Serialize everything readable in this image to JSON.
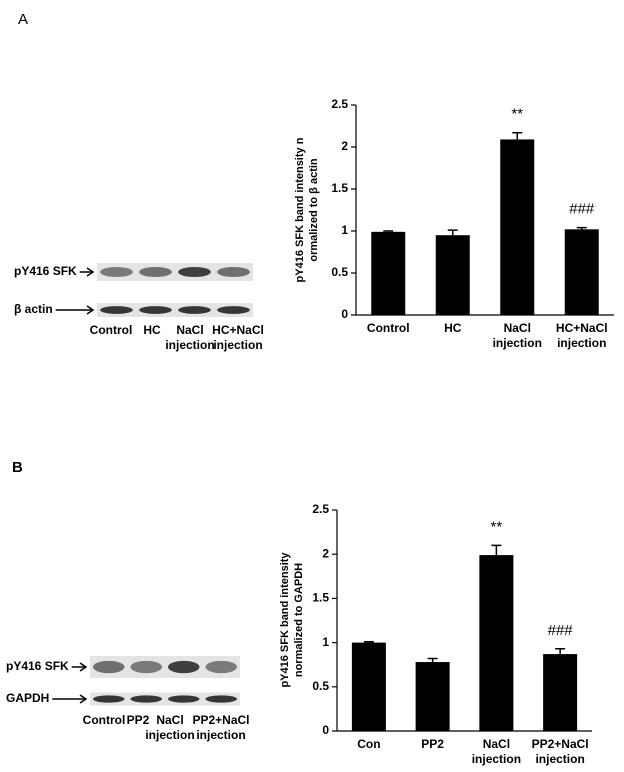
{
  "panels": [
    "A",
    "B"
  ],
  "blots": [
    {
      "rows": [
        "pY416 SFK",
        "β actin"
      ],
      "lanes": [
        [
          "Control"
        ],
        [
          "HC"
        ],
        [
          "NaCl",
          "injection"
        ],
        [
          "HC+NaCl",
          "injection"
        ]
      ]
    },
    {
      "rows": [
        "pY416 SFK",
        "GAPDH"
      ],
      "lanes": [
        [
          "Control"
        ],
        [
          "PP2"
        ],
        [
          "NaCl",
          "injection"
        ],
        [
          "PP2+NaCl",
          "injection"
        ]
      ]
    }
  ],
  "chart_data": [
    {
      "type": "bar",
      "ylabel": [
        "pY416 SFK band intensity n",
        "ormalized to β actin"
      ],
      "categories": [
        [
          "Control"
        ],
        [
          "HC"
        ],
        [
          "NaCl",
          "injection"
        ],
        [
          "HC+NaCl",
          "injection"
        ]
      ],
      "values": [
        0.99,
        0.95,
        2.09,
        1.02
      ],
      "errors": [
        0.01,
        0.06,
        0.08,
        0.02
      ],
      "annotations": [
        null,
        null,
        "**",
        "###"
      ],
      "color": "#000000",
      "ylim": [
        0,
        2.5
      ],
      "yticks": [
        0,
        0.5,
        1,
        1.5,
        2,
        2.5
      ],
      "grid": false
    },
    {
      "type": "bar",
      "ylabel": [
        "pY416 SFK band intensity",
        "normalized to GAPDH"
      ],
      "categories": [
        [
          "Con"
        ],
        [
          "PP2"
        ],
        [
          "NaCl",
          "injection"
        ],
        [
          "PP2+NaCl",
          "injection"
        ]
      ],
      "values": [
        1.0,
        0.78,
        1.99,
        0.87
      ],
      "errors": [
        0.01,
        0.04,
        0.11,
        0.06
      ],
      "annotations": [
        null,
        null,
        "**",
        "###"
      ],
      "color": "#000000",
      "ylim": [
        0,
        2.5
      ],
      "yticks": [
        0,
        0.5,
        1,
        1.5,
        2,
        2.5
      ],
      "grid": false
    }
  ]
}
